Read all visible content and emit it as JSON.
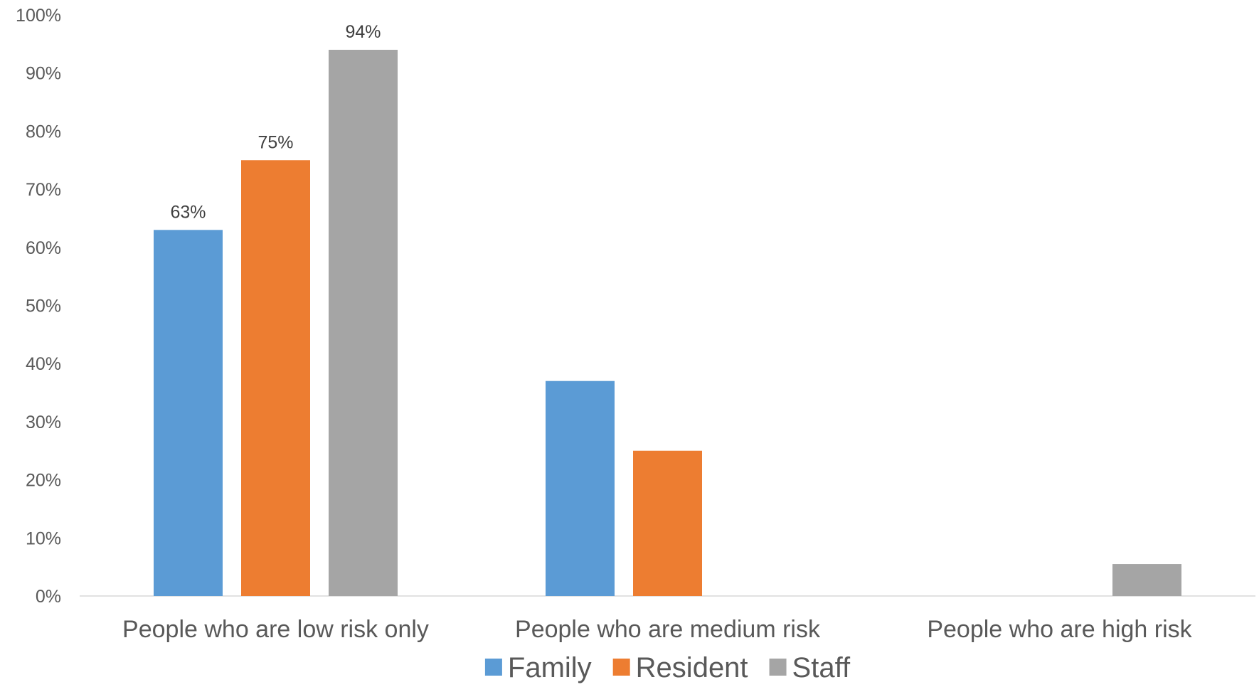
{
  "chart_data": {
    "type": "bar",
    "categories": [
      "People who are low risk only",
      "People who are medium risk",
      "People who are high risk"
    ],
    "series": [
      {
        "name": "Family",
        "color": "#5b9bd5",
        "values": [
          63,
          37,
          0
        ],
        "labels": [
          "63%",
          "",
          ""
        ]
      },
      {
        "name": "Resident",
        "color": "#ed7d31",
        "values": [
          75,
          25,
          0
        ],
        "labels": [
          "75%",
          "",
          ""
        ]
      },
      {
        "name": "Staff",
        "color": "#a5a5a5",
        "values": [
          94,
          0,
          5.5
        ],
        "labels": [
          "94%",
          "",
          ""
        ]
      }
    ],
    "yticks": [
      "0%",
      "10%",
      "20%",
      "30%",
      "40%",
      "50%",
      "60%",
      "70%",
      "80%",
      "90%",
      "100%"
    ],
    "ylim": [
      0,
      100
    ],
    "grid": false,
    "legend": "bottom"
  }
}
